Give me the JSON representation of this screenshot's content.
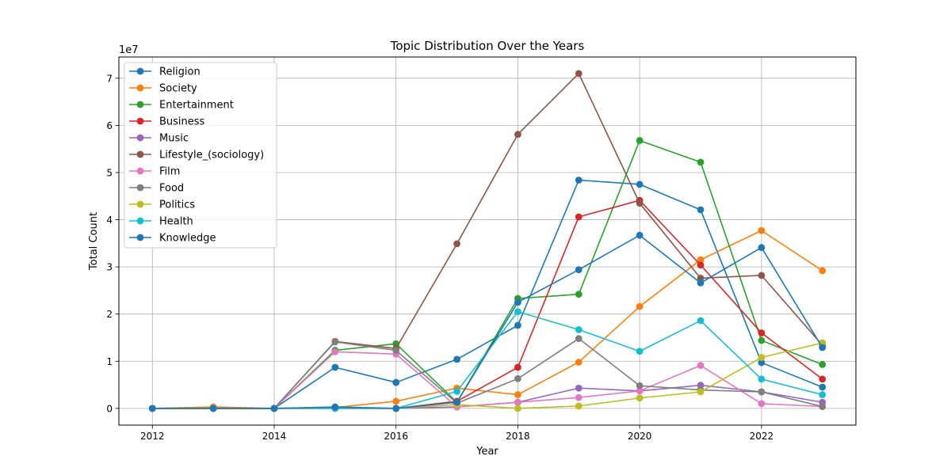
{
  "chart_data": {
    "type": "line",
    "title": "Topic Distribution Over the Years",
    "xlabel": "Year",
    "ylabel": "Total Count",
    "y_multiplier_label": "1e7",
    "x": [
      2012,
      2013,
      2014,
      2015,
      2016,
      2017,
      2018,
      2019,
      2020,
      2021,
      2022,
      2023
    ],
    "xlim": [
      2011.45,
      2023.55
    ],
    "ylim": [
      -3550000,
      74500000
    ],
    "xticks": [
      2012,
      2014,
      2016,
      2018,
      2020,
      2022
    ],
    "yticks": [
      0,
      10000000,
      20000000,
      30000000,
      40000000,
      50000000,
      60000000,
      70000000
    ],
    "ytick_labels": [
      "0",
      "1",
      "2",
      "3",
      "4",
      "5",
      "6",
      "7"
    ],
    "grid": true,
    "legend_position": "top-left",
    "marker": "circle",
    "series": [
      {
        "name": "Religion",
        "color": "#1f77b4",
        "values": [
          0,
          0,
          0,
          8700000,
          5500000,
          10400000,
          17600000,
          48400000,
          47500000,
          42100000,
          9700000,
          4500000
        ]
      },
      {
        "name": "Society",
        "color": "#ff7f0e",
        "values": [
          0,
          300000,
          0,
          200000,
          1500000,
          4300000,
          2900000,
          9800000,
          21600000,
          31500000,
          37700000,
          29200000
        ]
      },
      {
        "name": "Entertainment",
        "color": "#2ca02c",
        "values": [
          0,
          0,
          0,
          12300000,
          13700000,
          1300000,
          23300000,
          24200000,
          56800000,
          52200000,
          14400000,
          9300000
        ]
      },
      {
        "name": "Business",
        "color": "#d62728",
        "values": [
          0,
          0,
          0,
          0,
          0,
          1500000,
          8700000,
          40600000,
          44100000,
          30400000,
          16000000,
          6200000
        ]
      },
      {
        "name": "Music",
        "color": "#9467bd",
        "values": [
          0,
          0,
          0,
          0,
          0,
          300000,
          1300000,
          4300000,
          3700000,
          4900000,
          3500000,
          1300000
        ]
      },
      {
        "name": "Lifestyle_(sociology)",
        "color": "#8c564b",
        "values": [
          0,
          0,
          0,
          14200000,
          12700000,
          34900000,
          58100000,
          71000000,
          43500000,
          27600000,
          28200000,
          13400000
        ]
      },
      {
        "name": "Film",
        "color": "#e377c2",
        "values": [
          0,
          0,
          0,
          12000000,
          11500000,
          300000,
          1300000,
          2300000,
          3700000,
          9100000,
          1000000,
          400000
        ]
      },
      {
        "name": "Food",
        "color": "#7f7f7f",
        "values": [
          0,
          0,
          0,
          14100000,
          12300000,
          1100000,
          6300000,
          14800000,
          4800000,
          3900000,
          3500000,
          400000
        ]
      },
      {
        "name": "Politics",
        "color": "#bcbd22",
        "values": [
          0,
          0,
          0,
          0,
          0,
          800000,
          0,
          500000,
          2200000,
          3500000,
          10800000,
          13900000
        ]
      },
      {
        "name": "Health",
        "color": "#17becf",
        "values": [
          0,
          0,
          0,
          0,
          0,
          3600000,
          20500000,
          16700000,
          12100000,
          18600000,
          6200000,
          2900000
        ]
      },
      {
        "name": "Knowledge",
        "color": "#1f77b4",
        "values": [
          0,
          0,
          0,
          300000,
          0,
          1300000,
          22500000,
          29400000,
          36700000,
          26600000,
          34100000,
          12900000
        ]
      }
    ]
  }
}
